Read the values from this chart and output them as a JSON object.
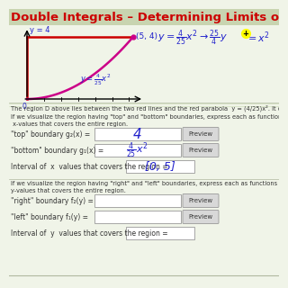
{
  "title": "Double Integrals – Determining Limits of Integration",
  "title_color": "#cc0000",
  "title_fontsize": 9.5,
  "bg_color": "#f0f4e8",
  "body_text_1": "The region D above lies between the two red lines and the red parabola y = (4/25)x². It can be describe in two ways.",
  "body_text_2": "If we visualize the region having \"top\" and \"bottom\" boundaries, express each as functions of  x  and provide the",
  "body_text_2b": " x-values that covers the entire region.",
  "label_top_boundary": "\"top\" boundary g₂(x) =",
  "answer_top": "4",
  "label_bottom_boundary": "\"bottom\" boundary g₁(x) =",
  "answer_bottom": "(4/25)x²",
  "label_interval_x": "Interval of  x  values that covers the region =",
  "answer_interval_x": "[0, 5]",
  "body_text_3": "If we visualize the region having \"right\" and \"left\" boundaries, express each as functions of  y  and provide the in-",
  "body_text_3b": "y-values that covers the entire region.",
  "label_right_boundary": "\"right\" boundary f₂(y) =",
  "label_left_boundary": "\"left\" boundary f₁(y) =",
  "label_interval_y": "Interval of  y  values that covers the region =",
  "preview_btn_color": "#d8d8d8",
  "input_box_color": "#ffffff",
  "grid_line_color": "#c8d8b0",
  "separator_color": "#b0b8a0"
}
